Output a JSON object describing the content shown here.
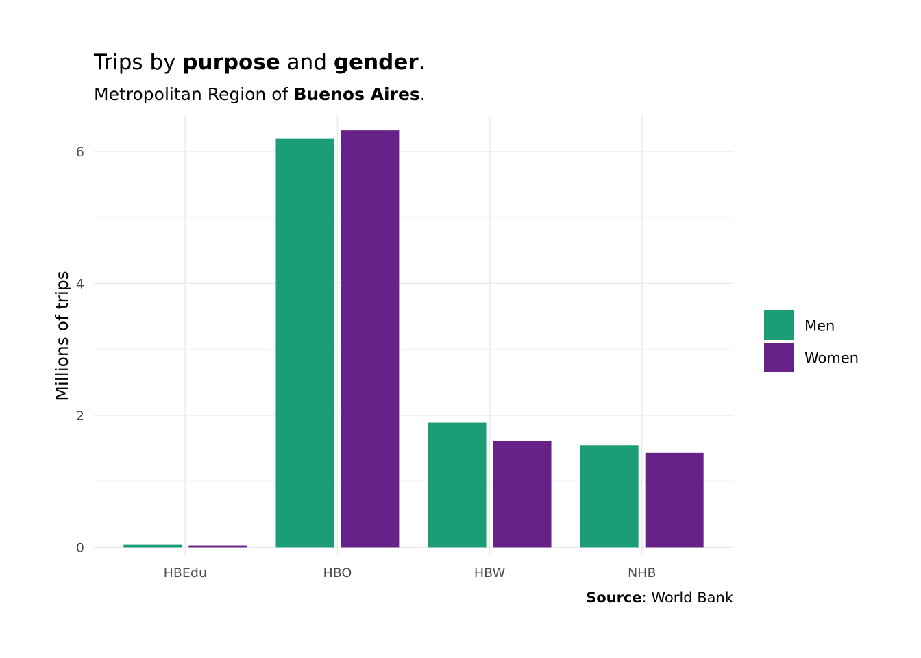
{
  "chart_data": {
    "type": "bar",
    "title_parts": [
      "Trips by ",
      "purpose",
      " and ",
      "gender",
      "."
    ],
    "subtitle_parts": [
      "Metropolitan Region of ",
      "Buenos Aires",
      "."
    ],
    "ylabel": "Millions of trips",
    "xlabel": "",
    "categories": [
      "HBEdu",
      "HBO",
      "HBW",
      "NHB"
    ],
    "series": [
      {
        "name": "Men",
        "color": "#1b9e77",
        "values": [
          0.04,
          6.19,
          1.89,
          1.55
        ]
      },
      {
        "name": "Women",
        "color": "#662288",
        "values": [
          0.03,
          6.32,
          1.61,
          1.43
        ]
      }
    ],
    "ylim": [
      -0.12,
      6.55
    ],
    "y_ticks": [
      0,
      2,
      4,
      6
    ],
    "y_minor_ticks": [
      1,
      3,
      5
    ],
    "grid": true,
    "legend_position": "right",
    "caption_parts": [
      "Source",
      ": World Bank"
    ]
  }
}
